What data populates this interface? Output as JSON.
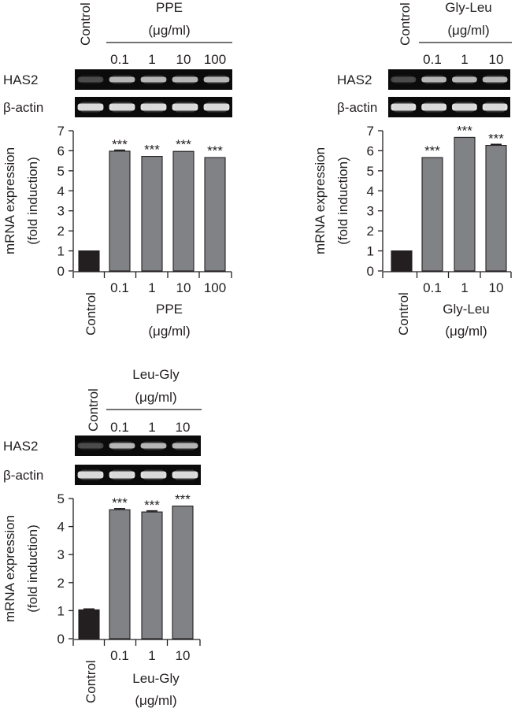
{
  "panels": [
    {
      "id": "ppe",
      "gel_header": {
        "control_label": "Control",
        "treatment": "PPE",
        "unit": "(μg/ml)",
        "doses": [
          "0.1",
          "1",
          "10",
          "100"
        ]
      },
      "gel_rows": [
        "HAS2",
        "β-actin"
      ],
      "chart_data": {
        "type": "bar",
        "categories": [
          "Control",
          "0.1",
          "1",
          "10",
          "100"
        ],
        "values": [
          1.0,
          5.98,
          5.72,
          5.97,
          5.66
        ],
        "errors": [
          0,
          0.05,
          0,
          0,
          0
        ],
        "significance": [
          "",
          "***",
          "***",
          "***",
          "***"
        ],
        "ylabel": "mRNA expression (fold induction)",
        "ylabel_lines": [
          "mRNA expression",
          "(fold induction)"
        ],
        "ylim": [
          0,
          7
        ],
        "yticks": [
          "0",
          "1",
          "2",
          "3",
          "4",
          "5",
          "6",
          "7"
        ],
        "xlabel_lines": [
          "PPE",
          "(μg/ml)"
        ],
        "colors": {
          "control": "#231f20",
          "treated": "#808285"
        }
      }
    },
    {
      "id": "gly-leu",
      "gel_header": {
        "control_label": "Control",
        "treatment": "Gly-Leu",
        "unit": "(μg/ml)",
        "doses": [
          "0.1",
          "1",
          "10"
        ]
      },
      "gel_rows": [
        "HAS2",
        "β-actin"
      ],
      "chart_data": {
        "type": "bar",
        "categories": [
          "Control",
          "0.1",
          "1",
          "10"
        ],
        "values": [
          1.0,
          5.66,
          6.67,
          6.27
        ],
        "errors": [
          0,
          0,
          0,
          0.05
        ],
        "significance": [
          "",
          "***",
          "***",
          "***"
        ],
        "ylabel": "mRNA expression (fold induction)",
        "ylabel_lines": [
          "mRNA expression",
          "(fold induction)"
        ],
        "ylim": [
          0,
          7
        ],
        "yticks": [
          "0",
          "1",
          "2",
          "3",
          "4",
          "5",
          "6",
          "7"
        ],
        "xlabel_lines": [
          "Gly-Leu",
          "(μg/ml)"
        ],
        "colors": {
          "control": "#231f20",
          "treated": "#808285"
        }
      }
    },
    {
      "id": "leu-gly",
      "gel_header": {
        "control_label": "Control",
        "treatment": "Leu-Gly",
        "unit": "(μg/ml)",
        "doses": [
          "0.1",
          "1",
          "10"
        ]
      },
      "gel_rows": [
        "HAS2",
        "β-actin"
      ],
      "chart_data": {
        "type": "bar",
        "categories": [
          "Control",
          "0.1",
          "1",
          "10"
        ],
        "values": [
          1.03,
          4.6,
          4.52,
          4.73
        ],
        "errors": [
          0.03,
          0.04,
          0.04,
          0
        ],
        "significance": [
          "",
          "***",
          "***",
          "***"
        ],
        "ylabel": "mRNA expression (fold induction)",
        "ylabel_lines": [
          "mRNA expression",
          "(fold induction)"
        ],
        "ylim": [
          0,
          5
        ],
        "yticks": [
          "0",
          "1",
          "2",
          "3",
          "4",
          "5"
        ],
        "xlabel_lines": [
          "Leu-Gly",
          "(μg/ml)"
        ],
        "colors": {
          "control": "#231f20",
          "treated": "#808285"
        }
      }
    }
  ]
}
